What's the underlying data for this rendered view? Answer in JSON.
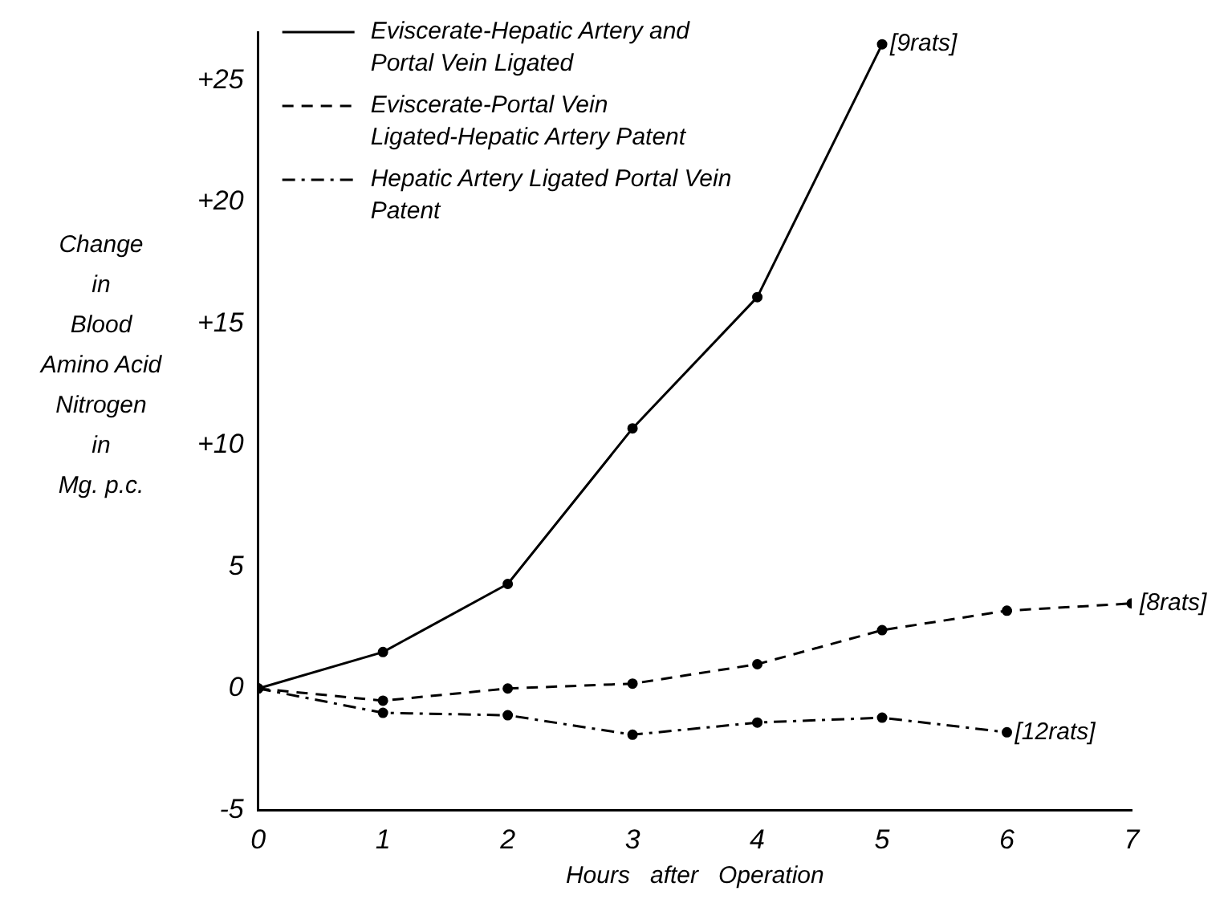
{
  "chart_data": {
    "type": "line",
    "xlabel": "Hours   after   Operation",
    "ylabel": "Change\nin\nBlood\nAmino Acid\nNitrogen\nin\nMg. p.c.",
    "series": [
      {
        "name": "Eviscerate-Hepatic Artery and Portal Vein Ligated",
        "color": "#000000",
        "line_style": "solid",
        "x": [
          0,
          1,
          2,
          3,
          4,
          5
        ],
        "values": [
          0,
          1.5,
          4.3,
          10.7,
          16.1,
          26.5
        ]
      },
      {
        "name": "Eviscerate-Portal Vein Ligated-Hepatic Artery Patent",
        "color": "#000000",
        "line_style": "dashed",
        "x": [
          0,
          1,
          2,
          3,
          4,
          5,
          6,
          7
        ],
        "values": [
          0,
          -0.5,
          0,
          0.2,
          1.0,
          2.4,
          3.2,
          3.5
        ]
      },
      {
        "name": "Hepatic Artery Ligated Portal Vein Patent",
        "color": "#000000",
        "line_style": "dashdot",
        "x": [
          0,
          1,
          2,
          3,
          4,
          5,
          6
        ],
        "values": [
          0,
          -1.0,
          -1.1,
          -1.9,
          -1.4,
          -1.2,
          -1.8
        ]
      }
    ],
    "xlim": [
      0,
      7
    ],
    "xticks": [
      0,
      1,
      2,
      3,
      4,
      5,
      6,
      7
    ],
    "ylim": [
      -5,
      27
    ],
    "yticks": [
      -5,
      0,
      5,
      {
        "value": 10,
        "label": "+10"
      },
      {
        "value": 15,
        "label": "+15"
      },
      {
        "value": 20,
        "label": "+20"
      },
      {
        "value": 25,
        "label": "+25"
      }
    ],
    "grid": false,
    "legend": "top left",
    "marker": "circle",
    "annotations": [
      {
        "text": "[9rats]",
        "x": 5,
        "y": 26.5
      },
      {
        "text": "[8rats]",
        "x": 7,
        "y": 3.5
      },
      {
        "text": "[12rats]",
        "x": 6,
        "y": -1.8
      }
    ]
  }
}
